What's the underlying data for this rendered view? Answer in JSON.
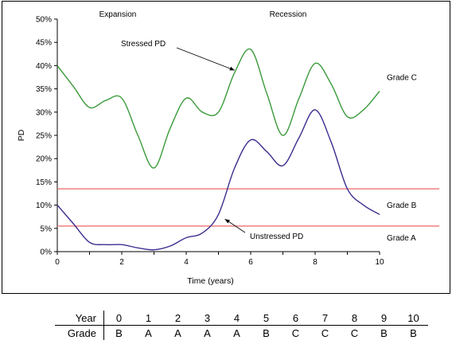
{
  "chart_data": {
    "type": "line",
    "xlabel": "Time (years)",
    "ylabel": "PD",
    "xlim": [
      0,
      10
    ],
    "ylim": [
      0,
      0.5
    ],
    "x_ticks": [
      "0",
      "2",
      "4",
      "6",
      "8",
      "10"
    ],
    "y_ticks": [
      "0%",
      "5%",
      "10%",
      "15%",
      "20%",
      "25%",
      "30%",
      "35%",
      "40%",
      "45%",
      "50%"
    ],
    "grid": false,
    "phases": [
      {
        "label": "Expansion"
      },
      {
        "label": "Recession"
      }
    ],
    "series": [
      {
        "name": "Stressed PD",
        "color": "#3a9a3a",
        "x": [
          0,
          0.5,
          1,
          1.5,
          2,
          2.5,
          3,
          3.5,
          4,
          4.5,
          5,
          5.5,
          6,
          6.5,
          7,
          7.5,
          8,
          8.5,
          9,
          9.5,
          10
        ],
        "values": [
          0.4,
          0.355,
          0.31,
          0.325,
          0.33,
          0.25,
          0.18,
          0.265,
          0.33,
          0.3,
          0.3,
          0.385,
          0.435,
          0.34,
          0.25,
          0.33,
          0.405,
          0.36,
          0.29,
          0.305,
          0.345
        ]
      },
      {
        "name": "Unstressed PD",
        "color": "#3a2f8f",
        "x": [
          0,
          0.5,
          1,
          1.5,
          2,
          2.5,
          3,
          3.5,
          4,
          4.5,
          5,
          5.5,
          6,
          6.5,
          7,
          7.5,
          8,
          8.5,
          9,
          9.5,
          10
        ],
        "values": [
          0.1,
          0.06,
          0.02,
          0.015,
          0.015,
          0.008,
          0.004,
          0.012,
          0.03,
          0.04,
          0.08,
          0.18,
          0.24,
          0.215,
          0.185,
          0.245,
          0.305,
          0.235,
          0.135,
          0.1,
          0.08
        ]
      }
    ],
    "thresholds": [
      {
        "value": 0.055,
        "color": "#f08080"
      },
      {
        "value": 0.135,
        "color": "#f08080"
      }
    ],
    "zone_labels": [
      {
        "label": "Grade C",
        "value": 0.375
      },
      {
        "label": "Grade B",
        "value": 0.1
      },
      {
        "label": "Grade A",
        "value": 0.03
      }
    ],
    "annotations": [
      {
        "label": "Stressed PD",
        "target_x": 5.5,
        "target_y": 0.39
      },
      {
        "label": "Unstressed PD",
        "target_x": 5.2,
        "target_y": 0.07
      }
    ]
  },
  "grade_table": {
    "row_labels": [
      "Year",
      "Grade"
    ],
    "years": [
      "0",
      "1",
      "2",
      "3",
      "4",
      "5",
      "6",
      "7",
      "8",
      "9",
      "10"
    ],
    "grades": [
      "B",
      "A",
      "A",
      "A",
      "A",
      "B",
      "C",
      "C",
      "C",
      "B",
      "B"
    ]
  }
}
